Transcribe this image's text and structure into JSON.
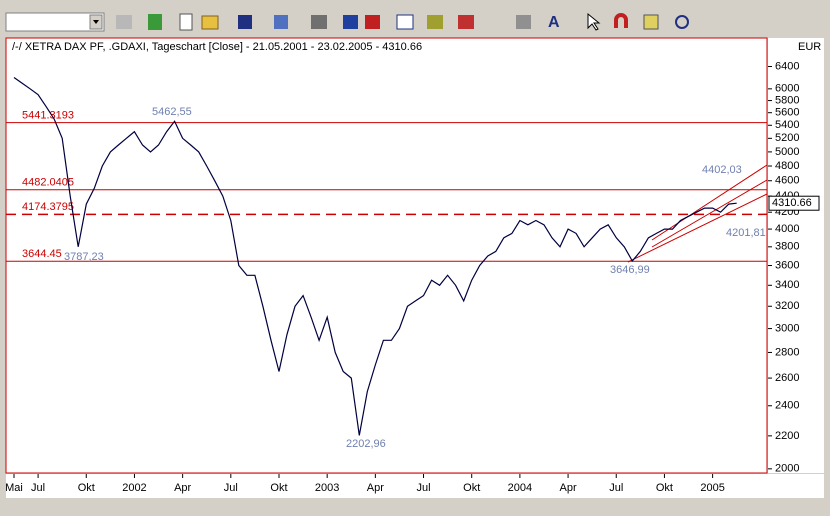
{
  "chart_data": {
    "type": "line",
    "title": "/-/ XETRA DAX PF, .GDAXI, Tageschart [Close] - 21.05.2001 - 23.02.2005 - 4310.66",
    "unit": "EUR",
    "categories": [
      "Mai",
      null,
      null,
      "Jul",
      null,
      null,
      null,
      null,
      null,
      "Okt",
      null,
      null,
      null,
      null,
      null,
      "2002",
      null,
      null,
      null,
      null,
      null,
      "Apr",
      null,
      null,
      null,
      null,
      null,
      "Jul",
      null,
      null,
      null,
      null,
      null,
      "Okt",
      null,
      null,
      null,
      null,
      null,
      "2003",
      null,
      null,
      null,
      null,
      null,
      "Apr",
      null,
      null,
      null,
      null,
      null,
      "Jul",
      null,
      null,
      null,
      null,
      null,
      "Okt",
      null,
      null,
      null,
      null,
      null,
      "2004",
      null,
      null,
      null,
      null,
      null,
      "Apr",
      null,
      null,
      null,
      null,
      null,
      "Jul",
      null,
      null,
      null,
      null,
      null,
      "Okt",
      null,
      null,
      null,
      null,
      null,
      "2005",
      null,
      null,
      null
    ],
    "series": [
      {
        "name": "DAX",
        "color": "#000040",
        "values": [
          6200,
          6100,
          6000,
          5900,
          5700,
          5500,
          5200,
          4400,
          3800,
          4300,
          4500,
          4800,
          5000,
          5100,
          5200,
          5300,
          5100,
          5000,
          5100,
          5300,
          5462.55,
          5200,
          5100,
          5000,
          4800,
          4600,
          4400,
          4100,
          3600,
          3500,
          3500,
          3200,
          2900,
          2650,
          2950,
          3200,
          3300,
          3100,
          2900,
          3100,
          2800,
          2650,
          2600,
          2202.96,
          2500,
          2700,
          2900,
          2900,
          3000,
          3200,
          3250,
          3300,
          3450,
          3400,
          3500,
          3400,
          3250,
          3450,
          3600,
          3700,
          3750,
          3900,
          3950,
          4100,
          4050,
          4100,
          4050,
          3900,
          3800,
          4000,
          3950,
          3800,
          3900,
          4000,
          4050,
          3900,
          3800,
          3646.99,
          3750,
          3900,
          3950,
          4000,
          4000,
          4100,
          4150,
          4200,
          4250,
          4250,
          4200,
          4300,
          4310.66
        ]
      }
    ],
    "ylim": [
      1976,
      6950
    ],
    "log_scale": true,
    "yticks": [
      2000,
      2200,
      2400,
      2600,
      2800,
      3000,
      3200,
      3400,
      3600,
      3800,
      4000,
      4200,
      4400,
      4600,
      4800,
      5000,
      5200,
      5400,
      5600,
      5800,
      6000,
      6400
    ],
    "grid": false,
    "levels": [
      5441.3193,
      4482.0405,
      4174.3795,
      3644.45
    ],
    "level_dashed": [
      false,
      false,
      true,
      false
    ],
    "level_color": "#cc0000",
    "annotations": [
      "5462,55",
      "3787,23",
      "2202,96",
      "3646,99",
      "4402,03",
      "4201,81"
    ],
    "annotation_color": "#7080b0"
  }
}
